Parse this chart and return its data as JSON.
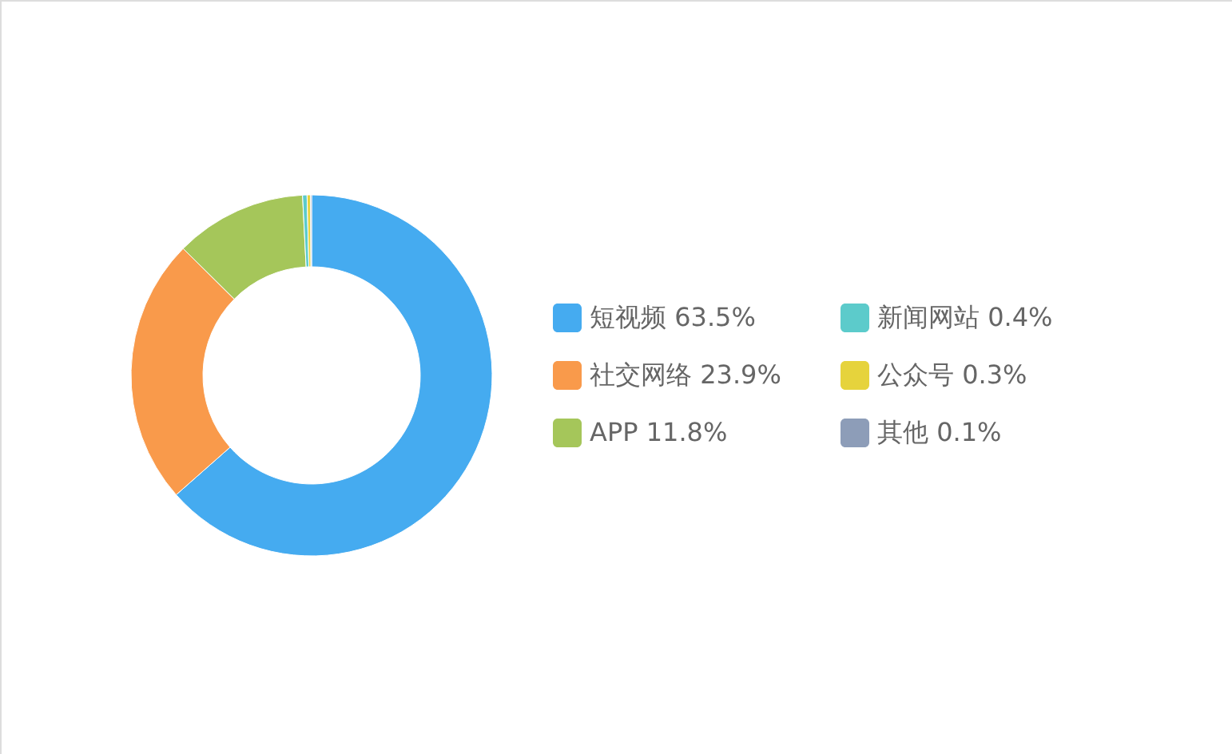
{
  "chart_data": {
    "type": "donut",
    "categories": [
      "短视频",
      "社交网络",
      "APP",
      "新闻网站",
      "公众号",
      "其他"
    ],
    "values": [
      63.5,
      23.9,
      11.8,
      0.4,
      0.3,
      0.1
    ],
    "colors": [
      "#45abf0",
      "#f99a4b",
      "#a5c65a",
      "#5ccbcb",
      "#e6d33c",
      "#8d9db8"
    ],
    "value_labels": [
      "63.5%",
      "23.9%",
      "11.8%",
      "0.4%",
      "0.3%",
      "0.1%"
    ],
    "legend": "right"
  }
}
